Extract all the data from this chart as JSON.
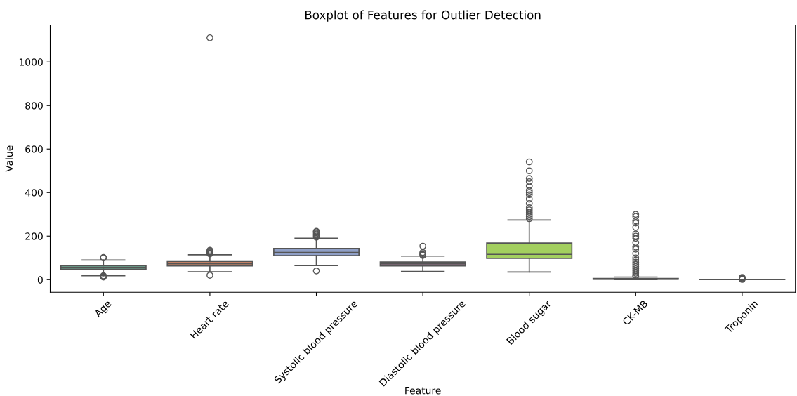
{
  "chart_data": {
    "type": "box",
    "title": "Boxplot of Features for Outlier Detection",
    "xlabel": "Feature",
    "ylabel": "Value",
    "categories": [
      "Age",
      "Heart rate",
      "Systolic blood pressure",
      "Diastolic blood pressure",
      "Blood sugar",
      "CK-MB",
      "Troponin"
    ],
    "colors": [
      "#6fac94",
      "#e8906b",
      "#8f9fc6",
      "#d690bf",
      "#a3cf5f",
      "#e3c84f",
      "#d3c29f"
    ],
    "boxes": [
      {
        "low": 18,
        "q1": 48,
        "median": 56,
        "q3": 64,
        "high": 90,
        "outliers": [
          100,
          102,
          12,
          15,
          18
        ]
      },
      {
        "low": 36,
        "q1": 63,
        "median": 73,
        "q3": 83,
        "high": 114,
        "outliers": [
          1111,
          20,
          118,
          122,
          126,
          130,
          135
        ]
      },
      {
        "low": 65,
        "q1": 110,
        "median": 125,
        "q3": 143,
        "high": 190,
        "outliers": [
          40,
          195,
          200,
          205,
          210,
          215,
          220,
          222
        ]
      },
      {
        "low": 38,
        "q1": 63,
        "median": 72,
        "q3": 81,
        "high": 108,
        "outliers": [
          111,
          115,
          120,
          125,
          154
        ]
      },
      {
        "low": 35,
        "q1": 98,
        "median": 116,
        "q3": 168,
        "high": 274,
        "outliers": [
          280,
          290,
          300,
          310,
          320,
          330,
          350,
          370,
          390,
          400,
          410,
          430,
          450,
          465,
          500,
          541
        ]
      },
      {
        "low": 0,
        "q1": 1.5,
        "median": 2.5,
        "q3": 5.5,
        "high": 12,
        "outliers": [
          15,
          20,
          30,
          40,
          50,
          60,
          70,
          80,
          90,
          100,
          120,
          140,
          150,
          170,
          190,
          200,
          210,
          240,
          260,
          270,
          290,
          300
        ]
      },
      {
        "low": 0,
        "q1": 0,
        "median": 0,
        "q3": 0.1,
        "high": 0.2,
        "outliers": [
          1,
          3,
          5,
          8,
          10
        ]
      }
    ],
    "ylim": [
      -58,
      1170
    ],
    "yticks": [
      0,
      200,
      400,
      600,
      800,
      1000
    ],
    "grid": false
  }
}
